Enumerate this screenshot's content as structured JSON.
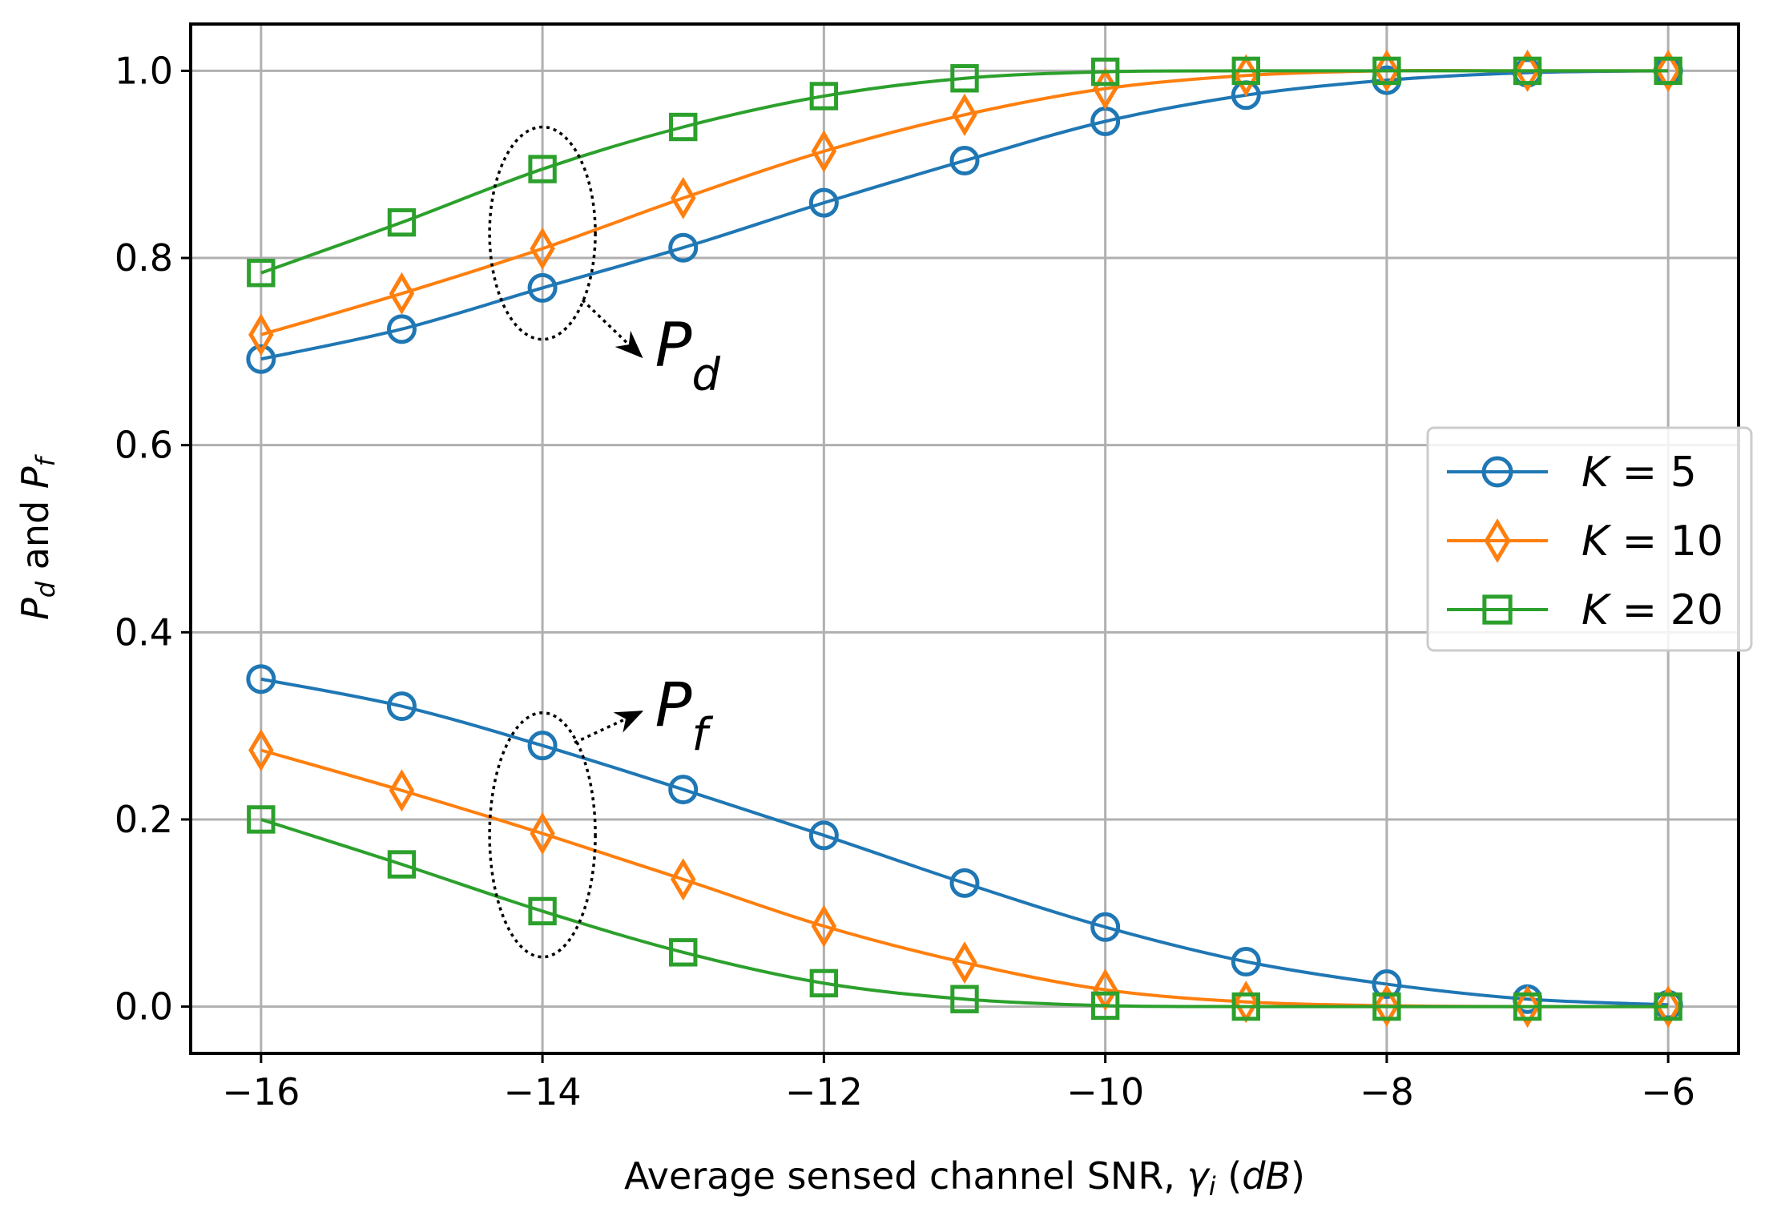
{
  "chart_data": {
    "type": "line",
    "title": "",
    "xlabel": "Average sensed channel SNR, ",
    "xlabel_symbol": "γ",
    "xlabel_symbol_sub": "i",
    "xlabel_unit": "dB",
    "ylabel_p1": "P",
    "ylabel_p1_sub": "d",
    "ylabel_mid": " and ",
    "ylabel_p2": "P",
    "ylabel_p2_sub": "f",
    "xlim": [
      -16.5,
      -5.5
    ],
    "ylim": [
      -0.05,
      1.05
    ],
    "xticks": [
      -16,
      -14,
      -12,
      -10,
      -8,
      -6
    ],
    "xtick_labels": [
      "−16",
      "−14",
      "−12",
      "−10",
      "−8",
      "−6"
    ],
    "yticks": [
      0.0,
      0.2,
      0.4,
      0.6,
      0.8,
      1.0
    ],
    "ytick_labels": [
      "0.0",
      "0.2",
      "0.4",
      "0.6",
      "0.8",
      "1.0"
    ],
    "grid": true,
    "legend_position": "center-right",
    "x": [
      -16,
      -15,
      -14,
      -13,
      -12,
      -11,
      -10,
      -9,
      -8,
      -7,
      -6
    ],
    "series": [
      {
        "name": "K = 5",
        "legend_var": "K",
        "legend_rest": " = 5",
        "color": "#1f77b4",
        "marker": "circle",
        "pd": [
          0.692,
          0.724,
          0.768,
          0.811,
          0.859,
          0.904,
          0.946,
          0.974,
          0.99,
          0.998,
          1.0
        ],
        "pf": [
          0.35,
          0.321,
          0.279,
          0.232,
          0.183,
          0.132,
          0.085,
          0.048,
          0.024,
          0.008,
          0.002
        ]
      },
      {
        "name": "K = 10",
        "legend_var": "K",
        "legend_rest": " = 10",
        "color": "#ff7f0e",
        "marker": "diamond",
        "pd": [
          0.718,
          0.762,
          0.81,
          0.864,
          0.914,
          0.953,
          0.981,
          0.995,
          1.0,
          1.0,
          1.0
        ],
        "pf": [
          0.274,
          0.231,
          0.185,
          0.136,
          0.086,
          0.047,
          0.018,
          0.005,
          0.001,
          0.0,
          0.0
        ]
      },
      {
        "name": "K = 20",
        "legend_var": "K",
        "legend_rest": " = 20",
        "color": "#2ca02c",
        "marker": "square",
        "pd": [
          0.784,
          0.838,
          0.895,
          0.94,
          0.973,
          0.992,
          0.999,
          1.0,
          1.0,
          1.0,
          1.0
        ],
        "pf": [
          0.2,
          0.152,
          0.102,
          0.058,
          0.025,
          0.008,
          0.001,
          0.0,
          0.0,
          0.0,
          0.0
        ]
      }
    ],
    "annotations": [
      {
        "text_main": "P",
        "text_sub": "d"
      },
      {
        "text_main": "P",
        "text_sub": "f"
      }
    ]
  }
}
